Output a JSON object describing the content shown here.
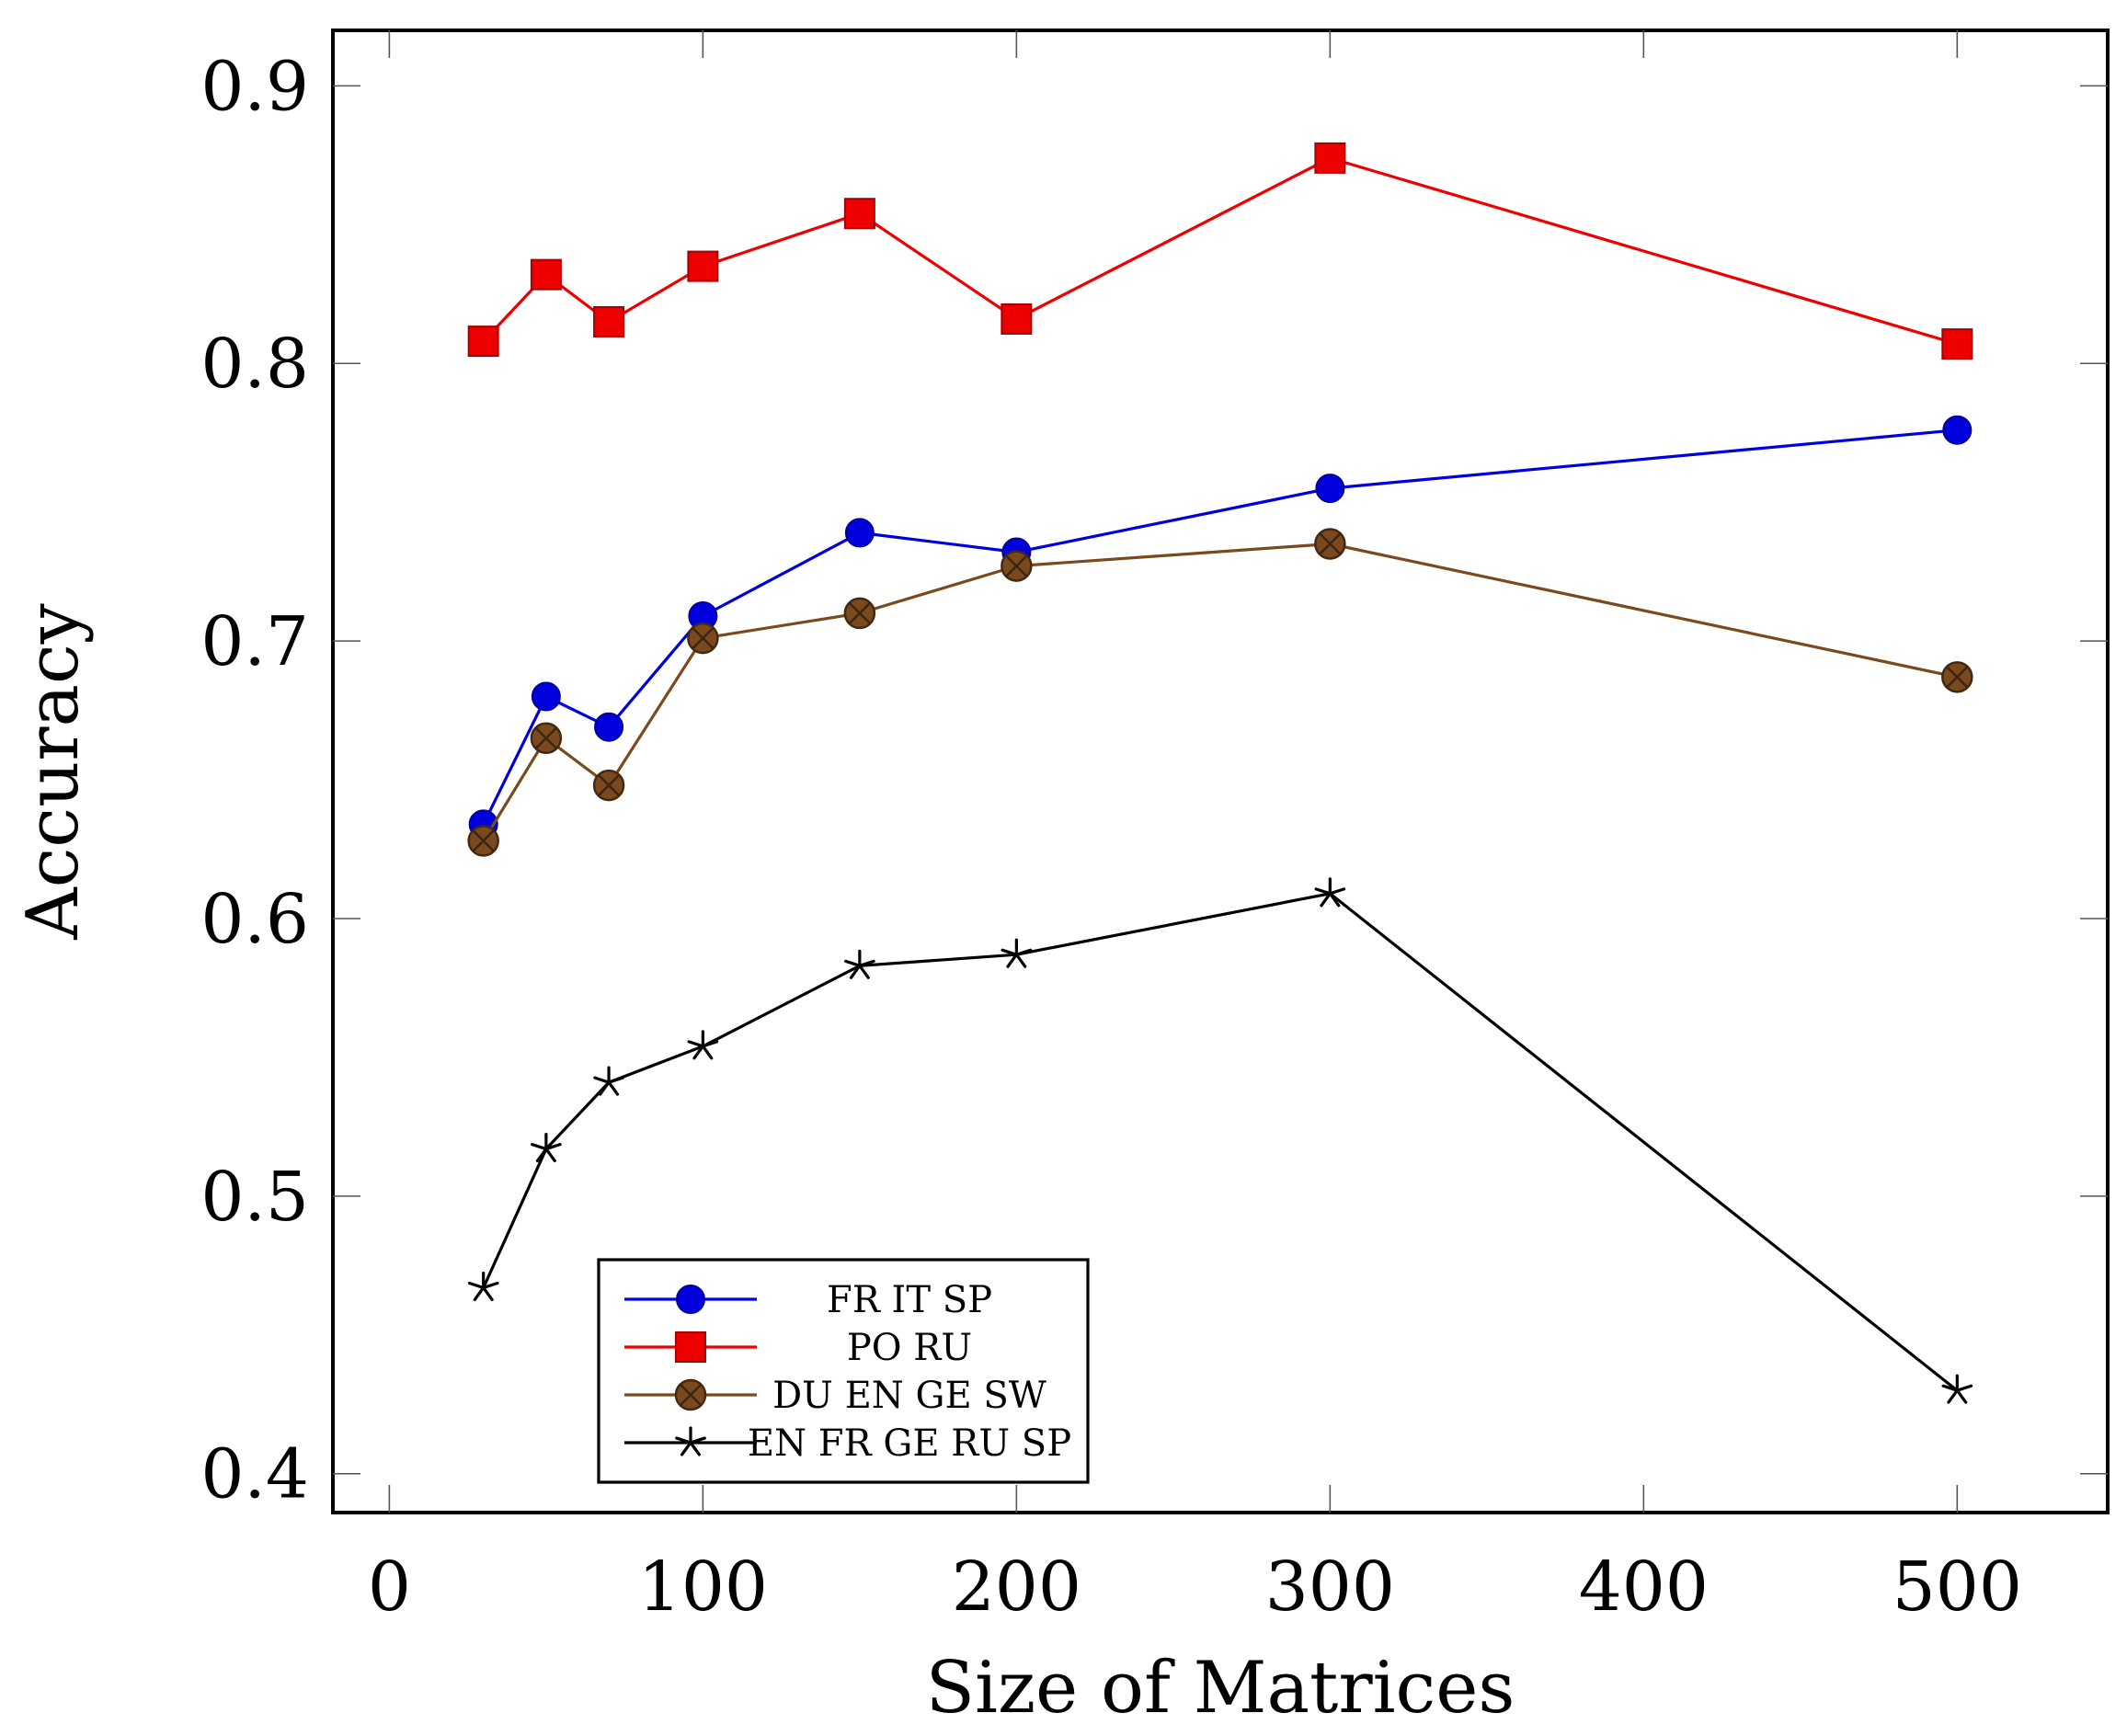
{
  "chart_data": {
    "type": "line",
    "xlabel": "Size of Matrices",
    "ylabel": "Accuracy",
    "xlim": [
      -18,
      548
    ],
    "ylim": [
      0.386,
      0.92
    ],
    "xticks": [
      0,
      100,
      200,
      300,
      400,
      500
    ],
    "yticks": [
      0.4,
      0.5,
      0.6,
      0.7,
      0.8,
      0.9
    ],
    "xtick_labels": [
      "0",
      "100",
      "200",
      "300",
      "400",
      "500"
    ],
    "ytick_labels": [
      "0.4",
      "0.5",
      "0.6",
      "0.7",
      "0.8",
      "0.9"
    ],
    "grid": false,
    "legend_position": "bottom-left",
    "x": [
      30,
      50,
      70,
      100,
      150,
      200,
      300,
      500
    ],
    "series": [
      {
        "name": "FR IT SP",
        "color": "#0000dd",
        "marker": "circle",
        "values": [
          0.634,
          0.68,
          0.669,
          0.709,
          0.739,
          0.732,
          0.755,
          0.776
        ]
      },
      {
        "name": "PO RU",
        "color": "#ee0000",
        "marker": "square",
        "values": [
          0.808,
          0.832,
          0.815,
          0.835,
          0.854,
          0.816,
          0.874,
          0.807
        ]
      },
      {
        "name": "DU EN GE SW",
        "color": "#7a4a1e",
        "marker": "otimes",
        "values": [
          0.628,
          0.665,
          0.648,
          0.701,
          0.71,
          0.727,
          0.735,
          0.687
        ]
      },
      {
        "name": "EN FR GE RU SP",
        "color": "#000000",
        "marker": "star",
        "values": [
          0.467,
          0.517,
          0.541,
          0.554,
          0.583,
          0.587,
          0.609,
          0.43
        ]
      }
    ]
  }
}
